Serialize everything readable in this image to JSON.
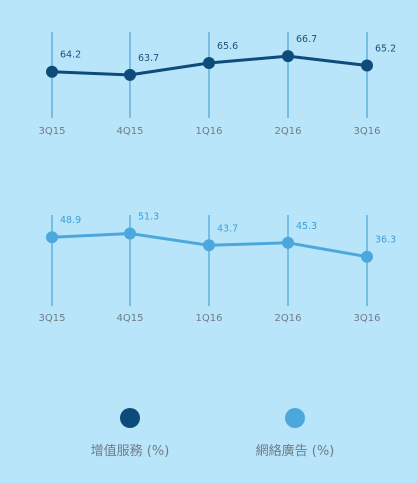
{
  "chart_data": [
    {
      "type": "line",
      "categories": [
        "3Q15",
        "4Q15",
        "1Q16",
        "2Q16",
        "3Q16"
      ],
      "series": [
        {
          "name": "增值服務 (%)",
          "values": [
            64.2,
            63.7,
            65.6,
            66.7,
            65.2
          ],
          "color": "#0d4b7a"
        }
      ],
      "data_labels": [
        "64.2",
        "63.7",
        "65.6",
        "66.7",
        "65.2"
      ],
      "ylim": [
        60,
        68
      ],
      "grid": false
    },
    {
      "type": "line",
      "categories": [
        "3Q15",
        "4Q15",
        "1Q16",
        "2Q16",
        "3Q16"
      ],
      "series": [
        {
          "name": "網絡廣告 (%)",
          "values": [
            48.9,
            51.3,
            43.7,
            45.3,
            36.3
          ],
          "color": "#4ca8dc"
        }
      ],
      "data_labels": [
        "48.9",
        "51.3",
        "43.7",
        "45.3",
        "36.3"
      ],
      "ylim": [
        20,
        60
      ],
      "grid": false
    }
  ],
  "legend": {
    "placement": "bottom",
    "items": [
      {
        "label": "增值服務 (%)",
        "color": "#0d4b7a"
      },
      {
        "label": "網絡廣告 (%)",
        "color": "#4ca8dc"
      }
    ]
  }
}
